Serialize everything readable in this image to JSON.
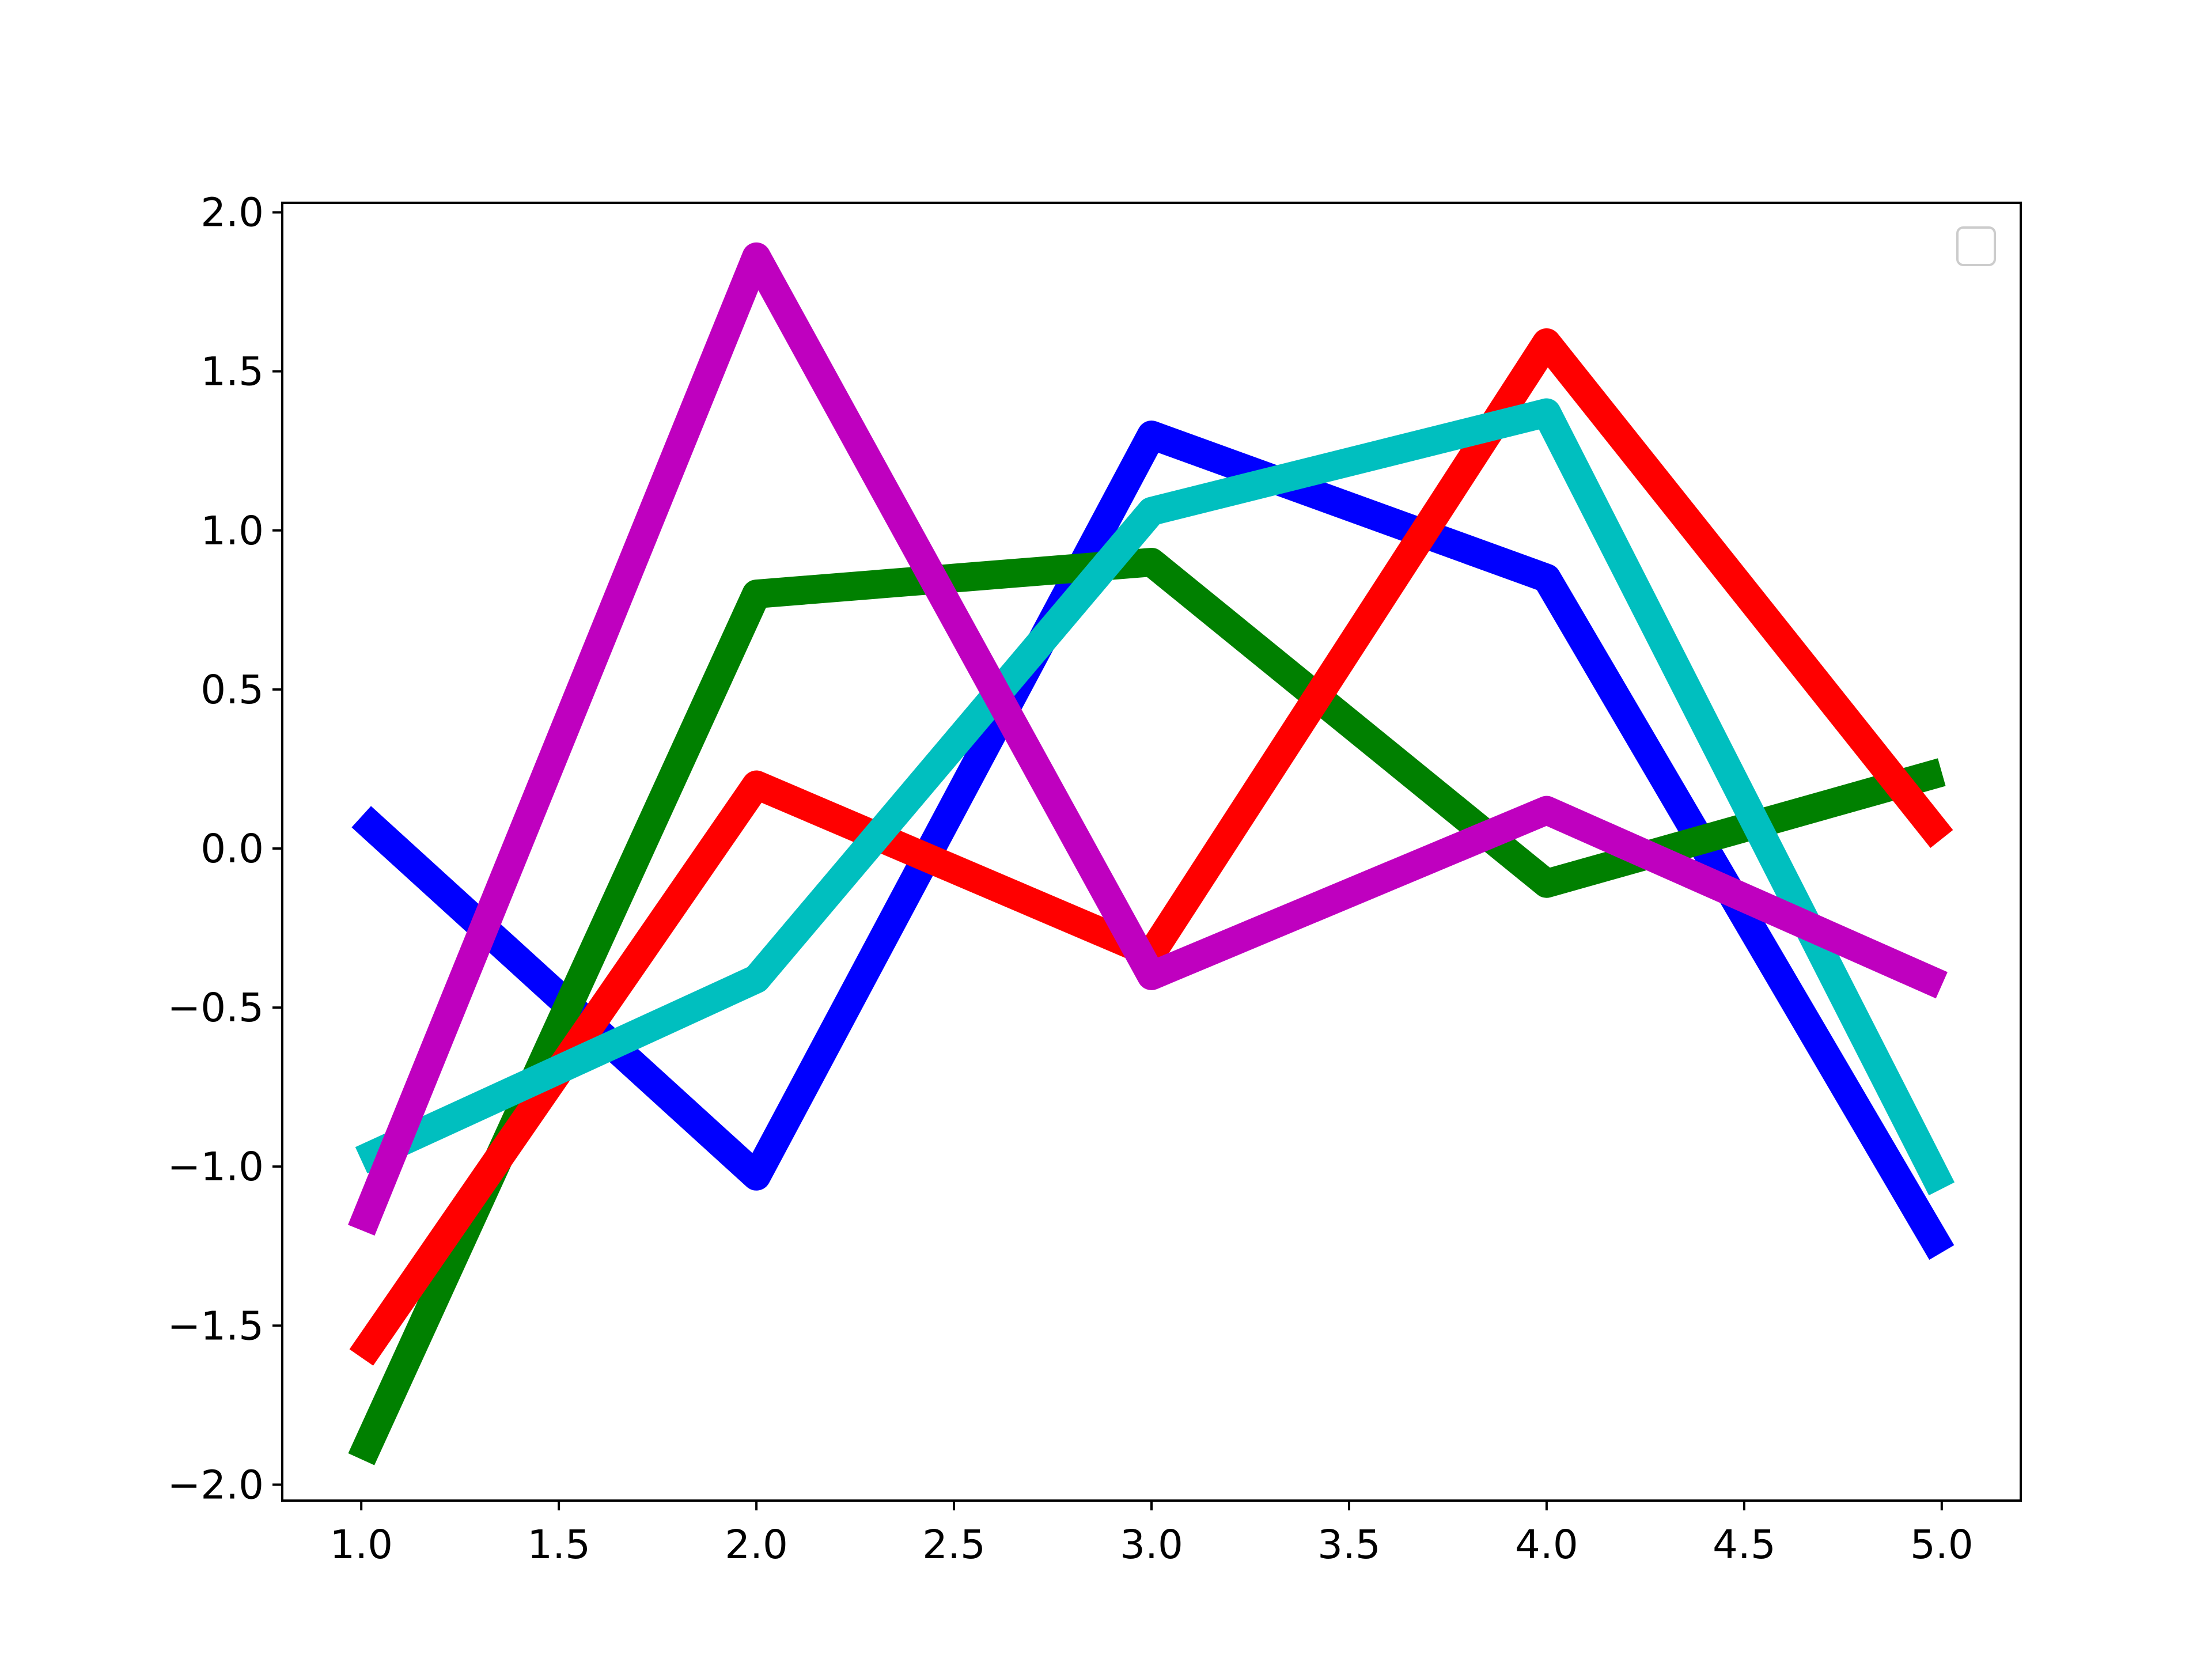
{
  "chart_data": {
    "type": "line",
    "title": "",
    "xlabel": "",
    "ylabel": "",
    "x": [
      1,
      2,
      3,
      4,
      5
    ],
    "xlim": [
      0.8,
      5.2
    ],
    "ylim": [
      -2.05,
      2.03
    ],
    "xticks": [
      1.0,
      1.5,
      2.0,
      2.5,
      3.0,
      3.5,
      4.0,
      4.5,
      5.0
    ],
    "yticks": [
      -2.0,
      -1.5,
      -1.0,
      -0.5,
      0.0,
      0.5,
      1.0,
      1.5,
      2.0
    ],
    "xtick_labels": [
      "1.0",
      "1.5",
      "2.0",
      "2.5",
      "3.0",
      "3.5",
      "4.0",
      "4.5",
      "5.0"
    ],
    "ytick_labels": [
      "−2.0",
      "−1.5",
      "−1.0",
      "−0.5",
      "0.0",
      "0.5",
      "1.0",
      "1.5",
      "2.0"
    ],
    "grid": false,
    "legend": {
      "location": "top-right",
      "entries": []
    },
    "series": [
      {
        "color": "#0000ff",
        "values": [
          0.1,
          -1.03,
          1.3,
          0.85,
          -1.27
        ]
      },
      {
        "color": "#008000",
        "values": [
          -1.92,
          0.8,
          0.9,
          -0.11,
          0.24
        ]
      },
      {
        "color": "#ff0000",
        "values": [
          -1.6,
          0.2,
          -0.33,
          1.59,
          0.03
        ]
      },
      {
        "color": "#00bfbf",
        "values": [
          -0.98,
          -0.41,
          1.06,
          1.37,
          -1.07
        ]
      },
      {
        "color": "#bf00bf",
        "values": [
          -1.2,
          1.86,
          -0.4,
          0.12,
          -0.43
        ]
      }
    ]
  }
}
